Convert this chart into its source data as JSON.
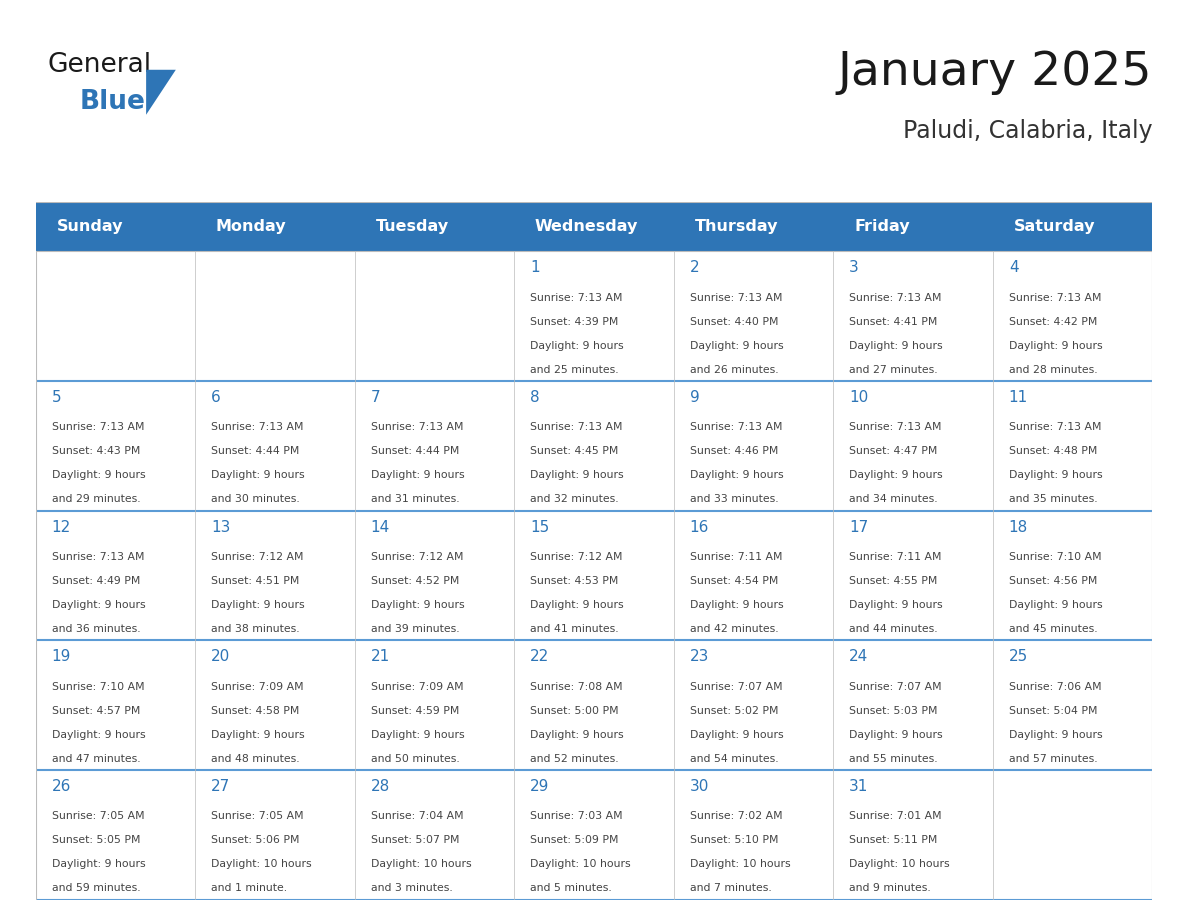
{
  "title": "January 2025",
  "subtitle": "Paludi, Calabria, Italy",
  "header_bg": "#2E75B6",
  "header_text_color": "#FFFFFF",
  "day_names": [
    "Sunday",
    "Monday",
    "Tuesday",
    "Wednesday",
    "Thursday",
    "Friday",
    "Saturday"
  ],
  "title_color": "#1a1a1a",
  "subtitle_color": "#333333",
  "day_number_color": "#2E75B6",
  "cell_text_color": "#444444",
  "grid_color": "#BBBBBB",
  "separator_color": "#5B9BD5",
  "logo_general_color": "#1a1a1a",
  "logo_blue_color": "#2E75B6",
  "logo_triangle_color": "#2E75B6",
  "days": [
    {
      "date": 1,
      "col": 3,
      "row": 0,
      "sunrise": "7:13 AM",
      "sunset": "4:39 PM",
      "daylight": "9 hours and 25 minutes"
    },
    {
      "date": 2,
      "col": 4,
      "row": 0,
      "sunrise": "7:13 AM",
      "sunset": "4:40 PM",
      "daylight": "9 hours and 26 minutes"
    },
    {
      "date": 3,
      "col": 5,
      "row": 0,
      "sunrise": "7:13 AM",
      "sunset": "4:41 PM",
      "daylight": "9 hours and 27 minutes"
    },
    {
      "date": 4,
      "col": 6,
      "row": 0,
      "sunrise": "7:13 AM",
      "sunset": "4:42 PM",
      "daylight": "9 hours and 28 minutes"
    },
    {
      "date": 5,
      "col": 0,
      "row": 1,
      "sunrise": "7:13 AM",
      "sunset": "4:43 PM",
      "daylight": "9 hours and 29 minutes"
    },
    {
      "date": 6,
      "col": 1,
      "row": 1,
      "sunrise": "7:13 AM",
      "sunset": "4:44 PM",
      "daylight": "9 hours and 30 minutes"
    },
    {
      "date": 7,
      "col": 2,
      "row": 1,
      "sunrise": "7:13 AM",
      "sunset": "4:44 PM",
      "daylight": "9 hours and 31 minutes"
    },
    {
      "date": 8,
      "col": 3,
      "row": 1,
      "sunrise": "7:13 AM",
      "sunset": "4:45 PM",
      "daylight": "9 hours and 32 minutes"
    },
    {
      "date": 9,
      "col": 4,
      "row": 1,
      "sunrise": "7:13 AM",
      "sunset": "4:46 PM",
      "daylight": "9 hours and 33 minutes"
    },
    {
      "date": 10,
      "col": 5,
      "row": 1,
      "sunrise": "7:13 AM",
      "sunset": "4:47 PM",
      "daylight": "9 hours and 34 minutes"
    },
    {
      "date": 11,
      "col": 6,
      "row": 1,
      "sunrise": "7:13 AM",
      "sunset": "4:48 PM",
      "daylight": "9 hours and 35 minutes"
    },
    {
      "date": 12,
      "col": 0,
      "row": 2,
      "sunrise": "7:13 AM",
      "sunset": "4:49 PM",
      "daylight": "9 hours and 36 minutes"
    },
    {
      "date": 13,
      "col": 1,
      "row": 2,
      "sunrise": "7:12 AM",
      "sunset": "4:51 PM",
      "daylight": "9 hours and 38 minutes"
    },
    {
      "date": 14,
      "col": 2,
      "row": 2,
      "sunrise": "7:12 AM",
      "sunset": "4:52 PM",
      "daylight": "9 hours and 39 minutes"
    },
    {
      "date": 15,
      "col": 3,
      "row": 2,
      "sunrise": "7:12 AM",
      "sunset": "4:53 PM",
      "daylight": "9 hours and 41 minutes"
    },
    {
      "date": 16,
      "col": 4,
      "row": 2,
      "sunrise": "7:11 AM",
      "sunset": "4:54 PM",
      "daylight": "9 hours and 42 minutes"
    },
    {
      "date": 17,
      "col": 5,
      "row": 2,
      "sunrise": "7:11 AM",
      "sunset": "4:55 PM",
      "daylight": "9 hours and 44 minutes"
    },
    {
      "date": 18,
      "col": 6,
      "row": 2,
      "sunrise": "7:10 AM",
      "sunset": "4:56 PM",
      "daylight": "9 hours and 45 minutes"
    },
    {
      "date": 19,
      "col": 0,
      "row": 3,
      "sunrise": "7:10 AM",
      "sunset": "4:57 PM",
      "daylight": "9 hours and 47 minutes"
    },
    {
      "date": 20,
      "col": 1,
      "row": 3,
      "sunrise": "7:09 AM",
      "sunset": "4:58 PM",
      "daylight": "9 hours and 48 minutes"
    },
    {
      "date": 21,
      "col": 2,
      "row": 3,
      "sunrise": "7:09 AM",
      "sunset": "4:59 PM",
      "daylight": "9 hours and 50 minutes"
    },
    {
      "date": 22,
      "col": 3,
      "row": 3,
      "sunrise": "7:08 AM",
      "sunset": "5:00 PM",
      "daylight": "9 hours and 52 minutes"
    },
    {
      "date": 23,
      "col": 4,
      "row": 3,
      "sunrise": "7:07 AM",
      "sunset": "5:02 PM",
      "daylight": "9 hours and 54 minutes"
    },
    {
      "date": 24,
      "col": 5,
      "row": 3,
      "sunrise": "7:07 AM",
      "sunset": "5:03 PM",
      "daylight": "9 hours and 55 minutes"
    },
    {
      "date": 25,
      "col": 6,
      "row": 3,
      "sunrise": "7:06 AM",
      "sunset": "5:04 PM",
      "daylight": "9 hours and 57 minutes"
    },
    {
      "date": 26,
      "col": 0,
      "row": 4,
      "sunrise": "7:05 AM",
      "sunset": "5:05 PM",
      "daylight": "9 hours and 59 minutes"
    },
    {
      "date": 27,
      "col": 1,
      "row": 4,
      "sunrise": "7:05 AM",
      "sunset": "5:06 PM",
      "daylight": "10 hours and 1 minute"
    },
    {
      "date": 28,
      "col": 2,
      "row": 4,
      "sunrise": "7:04 AM",
      "sunset": "5:07 PM",
      "daylight": "10 hours and 3 minutes"
    },
    {
      "date": 29,
      "col": 3,
      "row": 4,
      "sunrise": "7:03 AM",
      "sunset": "5:09 PM",
      "daylight": "10 hours and 5 minutes"
    },
    {
      "date": 30,
      "col": 4,
      "row": 4,
      "sunrise": "7:02 AM",
      "sunset": "5:10 PM",
      "daylight": "10 hours and 7 minutes"
    },
    {
      "date": 31,
      "col": 5,
      "row": 4,
      "sunrise": "7:01 AM",
      "sunset": "5:11 PM",
      "daylight": "10 hours and 9 minutes"
    }
  ]
}
